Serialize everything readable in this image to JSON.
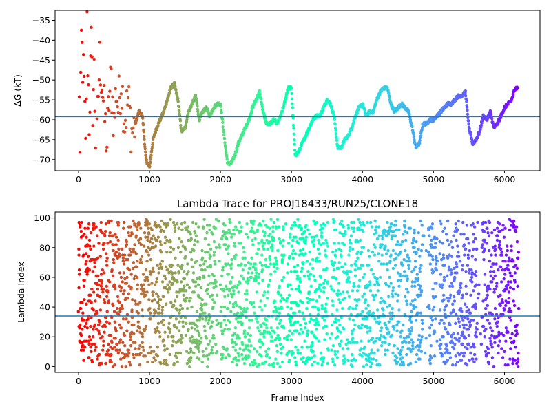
{
  "chart_data": [
    {
      "type": "scatter",
      "title": "",
      "xlabel": "",
      "ylabel": "ΔG (kT)",
      "xlim": [
        -330,
        6500
      ],
      "ylim": [
        -72.8,
        -32.5
      ],
      "xticks": [
        0,
        1000,
        2000,
        3000,
        4000,
        5000,
        6000
      ],
      "yticks": [
        -70,
        -65,
        -60,
        -55,
        -50,
        -45,
        -40,
        -35
      ],
      "hline": -59.2,
      "hline_color": "#1f77b4",
      "colormap": "rainbow",
      "colormap_note": "earliest frames red, latest frames violet",
      "total_frames": 6200,
      "series": [
        {
          "x": [
            0,
            20,
            40,
            60,
            80,
            100,
            120,
            150,
            180,
            200,
            220,
            250,
            280,
            300,
            330,
            360,
            400,
            430,
            460,
            500,
            530,
            560,
            600,
            650,
            700,
            750,
            800,
            850,
            900,
            950,
            1000,
            1050,
            1100,
            1150,
            1200,
            1250,
            1300,
            1350,
            1400,
            1450,
            1500,
            1550,
            1600,
            1650,
            1700,
            1750,
            1800,
            1850,
            1900,
            1950,
            2000,
            2050,
            2100,
            2150,
            2200,
            2250,
            2300,
            2350,
            2400,
            2450,
            2500,
            2550,
            2600,
            2650,
            2700,
            2750,
            2800,
            2850,
            2900,
            2950,
            3000,
            3050,
            3100,
            3150,
            3200,
            3250,
            3300,
            3350,
            3400,
            3450,
            3500,
            3550,
            3600,
            3650,
            3700,
            3750,
            3800,
            3850,
            3900,
            3950,
            4000,
            4050,
            4100,
            4150,
            4200,
            4250,
            4300,
            4350,
            4400,
            4450,
            4500,
            4550,
            4600,
            4650,
            4700,
            4750,
            4800,
            4850,
            4900,
            4950,
            5000,
            5050,
            5100,
            5150,
            5200,
            5250,
            5300,
            5350,
            5400,
            5450,
            5500,
            5550,
            5600,
            5650,
            5700,
            5750,
            5800,
            5850,
            5900,
            5950,
            6000,
            6050,
            6100,
            6150,
            6190
          ],
          "y": [
            -33,
            -70,
            -40,
            -46,
            -52,
            -68,
            -37,
            -60,
            -42,
            -56,
            -48,
            -72,
            -53,
            -45,
            -50,
            -58,
            -66,
            -55,
            -50,
            -61,
            -52,
            -57,
            -50,
            -60,
            -55,
            -63,
            -61,
            -58,
            -59,
            -70,
            -72,
            -65,
            -62,
            -60,
            -58,
            -55,
            -52,
            -51,
            -55,
            -63,
            -62,
            -58,
            -56,
            -54,
            -60,
            -58,
            -57,
            -59,
            -57,
            -56,
            -56,
            -64,
            -71,
            -71,
            -69,
            -66,
            -64,
            -62,
            -60,
            -57,
            -55,
            -53,
            -58,
            -61,
            -61,
            -60,
            -61,
            -59,
            -56,
            -52,
            -52,
            -69,
            -68,
            -66,
            -64,
            -62,
            -60,
            -59,
            -59,
            -57,
            -55,
            -56,
            -59,
            -67,
            -67,
            -65,
            -64,
            -62,
            -59,
            -57,
            -56,
            -59,
            -58,
            -58,
            -55,
            -53,
            -52,
            -52,
            -56,
            -58,
            -57,
            -56,
            -57,
            -58,
            -62,
            -67,
            -66,
            -61,
            -61,
            -60,
            -60,
            -59,
            -58,
            -57,
            -56,
            -56,
            -55,
            -54,
            -54,
            -53,
            -62,
            -66,
            -65,
            -63,
            -59,
            -60,
            -58,
            -62,
            -61,
            -59,
            -57,
            -56,
            -55,
            -52,
            -52
          ]
        }
      ]
    },
    {
      "type": "scatter",
      "title": "Lambda Trace for PROJ18433/RUN25/CLONE18",
      "xlabel": "Frame Index",
      "ylabel": "Lambda Index",
      "xlim": [
        -330,
        6500
      ],
      "ylim": [
        -4,
        104
      ],
      "xticks": [
        0,
        1000,
        2000,
        3000,
        4000,
        5000,
        6000
      ],
      "yticks": [
        0,
        20,
        40,
        60,
        80,
        100
      ],
      "hline": 34,
      "hline_color": "#1f77b4",
      "colormap": "rainbow",
      "total_frames": 6200,
      "point_count": 3100,
      "value_range": [
        0,
        99
      ]
    }
  ]
}
